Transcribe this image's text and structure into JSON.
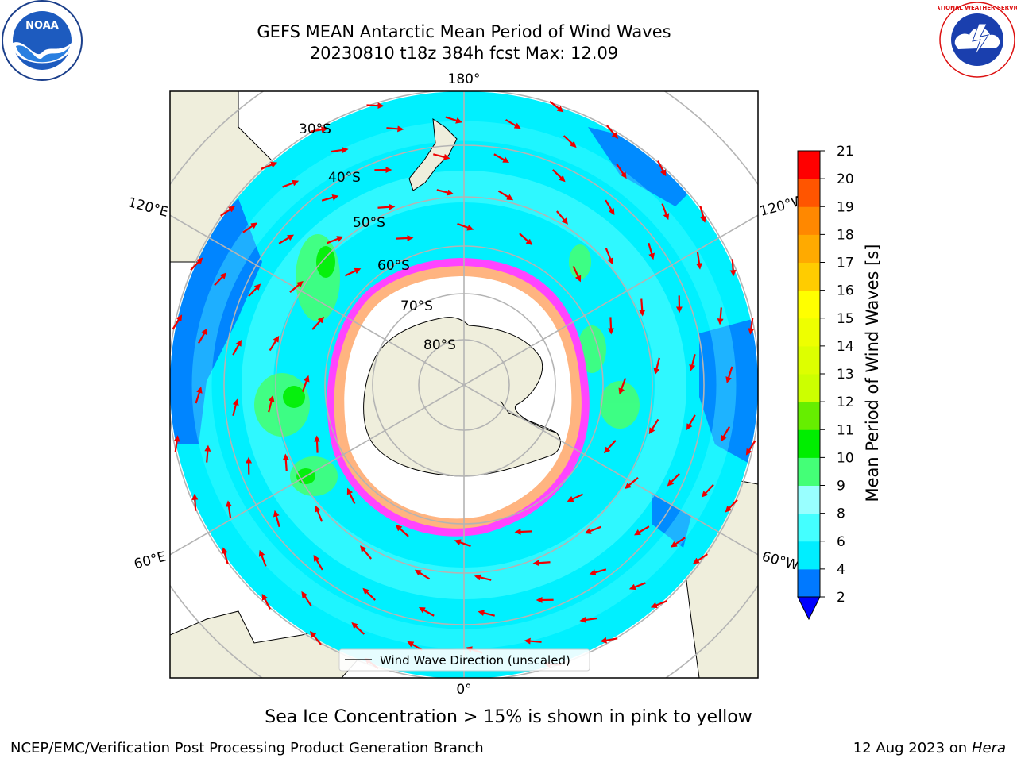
{
  "header": {
    "title_line1": "GEFS MEAN Antarctic Mean Period of Wind Waves",
    "title_line2": "20230810 t18z 384h fcst   Max: 12.09"
  },
  "logos": {
    "left": {
      "name": "noaa-logo",
      "text": "NOAA"
    },
    "right": {
      "name": "national-weather-service-logo",
      "text": "NATIONAL WEATHER SERVICE"
    }
  },
  "map": {
    "projection": "south-polar-stereographic",
    "longitude_labels": {
      "top": "180°",
      "bottom": "0°",
      "upper_left": "120°E",
      "upper_right": "120°W",
      "lower_left": "60°E",
      "lower_right": "60°W"
    },
    "latitude_labels": [
      "30°S",
      "40°S",
      "50°S",
      "60°S",
      "70°S",
      "80°S"
    ],
    "legend_label": "Wind Wave Direction (unscaled)",
    "colors": {
      "land": "#efeedc",
      "ocean_main": "#00f0ff",
      "ocean_light": "#4dffff",
      "sea_ice_pink": "#ff44ff",
      "sea_ice_yellow": "#ffe44a",
      "arrow": "#ee0000",
      "grid": "#b4b4b4"
    }
  },
  "colorbar": {
    "label": "Mean Period of Wind Waves [s]",
    "ticks": [
      "2",
      "4",
      "6",
      "8",
      "9",
      "10",
      "11",
      "12",
      "13",
      "14",
      "15",
      "16",
      "17",
      "18",
      "19",
      "20",
      "21"
    ],
    "colors": [
      "#0079ff",
      "#00eeff",
      "#44ffff",
      "#99ffff",
      "#44ff77",
      "#00ee00",
      "#66ee00",
      "#ccff00",
      "#ddff00",
      "#eeff00",
      "#ffff00",
      "#ffcc00",
      "#ffaa00",
      "#ff8800",
      "#ff5500",
      "#ff0000"
    ],
    "under_color": "#0000ff"
  },
  "footer": {
    "sea_ice_note": "Sea Ice Concentration > 15% is shown in pink to yellow",
    "branch": "NCEP/EMC/Verification Post Processing Product Generation Branch",
    "date": "12 Aug 2023 on",
    "host": "Hera"
  }
}
